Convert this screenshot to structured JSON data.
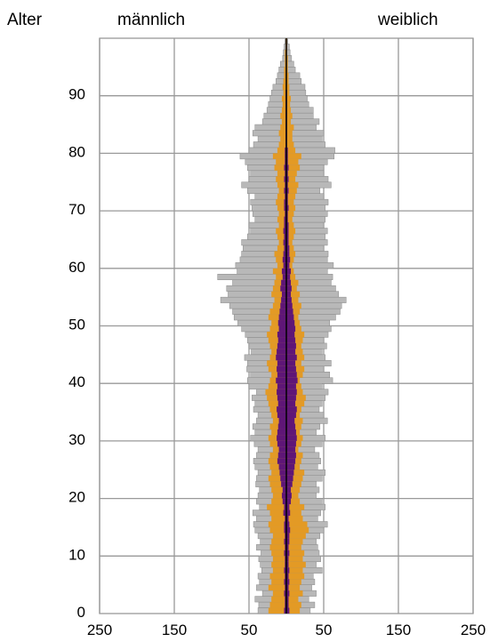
{
  "chart_data": {
    "type": "bar",
    "subtype": "population-pyramid",
    "y_axis_label": "Alter",
    "left_label": "männlich",
    "right_label": "weiblich",
    "x_tick_labels": [
      "250",
      "150",
      "50",
      "50",
      "150",
      "250"
    ],
    "x_tick_values": [
      -250,
      -150,
      -50,
      50,
      150,
      250
    ],
    "xlim": [
      -250,
      250
    ],
    "y_tick_labels": [
      "0",
      "10",
      "20",
      "30",
      "40",
      "50",
      "60",
      "70",
      "80",
      "90"
    ],
    "y_tick_values": [
      0,
      10,
      20,
      30,
      40,
      50,
      60,
      70,
      80,
      90
    ],
    "ylim": [
      0,
      99
    ],
    "grid": true,
    "colors": {
      "outer_layer": "#b8b8b8",
      "middle_layer": "#e39a25",
      "inner_layer": "#5f1677",
      "grid": "#999999",
      "axis": "#000000"
    },
    "ages": [
      0,
      1,
      2,
      3,
      4,
      5,
      6,
      7,
      8,
      9,
      10,
      11,
      12,
      13,
      14,
      15,
      16,
      17,
      18,
      19,
      20,
      21,
      22,
      23,
      24,
      25,
      26,
      27,
      28,
      29,
      30,
      31,
      32,
      33,
      34,
      35,
      36,
      37,
      38,
      39,
      40,
      41,
      42,
      43,
      44,
      45,
      46,
      47,
      48,
      49,
      50,
      51,
      52,
      53,
      54,
      55,
      56,
      57,
      58,
      59,
      60,
      61,
      62,
      63,
      64,
      65,
      66,
      67,
      68,
      69,
      70,
      71,
      72,
      73,
      74,
      75,
      76,
      77,
      78,
      79,
      80,
      81,
      82,
      83,
      84,
      85,
      86,
      87,
      88,
      89,
      90,
      91,
      92,
      93,
      94,
      95,
      96,
      97,
      98,
      99
    ],
    "series": [
      {
        "layer": "outer",
        "male": [
          38,
          37,
          42,
          32,
          40,
          36,
          38,
          33,
          35,
          37,
          34,
          40,
          35,
          38,
          42,
          44,
          40,
          45,
          36,
          40,
          38,
          36,
          41,
          40,
          38,
          42,
          44,
          40,
          38,
          43,
          48,
          42,
          45,
          40,
          38,
          44,
          42,
          46,
          40,
          50,
          52,
          48,
          53,
          52,
          56,
          47,
          50,
          52,
          55,
          60,
          65,
          70,
          72,
          76,
          88,
          78,
          80,
          72,
          92,
          66,
          68,
          62,
          60,
          58,
          60,
          52,
          48,
          50,
          42,
          45,
          46,
          48,
          42,
          52,
          60,
          50,
          48,
          52,
          55,
          62,
          50,
          44,
          38,
          45,
          42,
          32,
          30,
          26,
          24,
          22,
          20,
          18,
          14,
          12,
          10,
          8,
          5,
          4,
          3,
          2
        ],
        "female": [
          32,
          38,
          30,
          40,
          34,
          38,
          36,
          48,
          40,
          46,
          44,
          42,
          40,
          45,
          50,
          55,
          42,
          46,
          52,
          48,
          40,
          44,
          40,
          48,
          52,
          42,
          46,
          44,
          38,
          48,
          52,
          40,
          45,
          55,
          50,
          44,
          48,
          52,
          56,
          48,
          62,
          58,
          50,
          60,
          52,
          48,
          54,
          50,
          56,
          60,
          58,
          66,
          72,
          74,
          80,
          70,
          66,
          60,
          62,
          55,
          63,
          55,
          56,
          50,
          55,
          52,
          55,
          50,
          52,
          55,
          52,
          56,
          50,
          45,
          60,
          56,
          50,
          50,
          55,
          64,
          65,
          52,
          48,
          50,
          40,
          44,
          36,
          36,
          30,
          28,
          26,
          25,
          20,
          18,
          12,
          10,
          7,
          5,
          4,
          2
        ]
      },
      {
        "layer": "middle",
        "male": [
          24,
          22,
          20,
          18,
          24,
          20,
          22,
          18,
          20,
          18,
          20,
          22,
          20,
          18,
          22,
          24,
          20,
          22,
          26,
          20,
          18,
          20,
          22,
          24,
          20,
          22,
          24,
          22,
          18,
          22,
          24,
          20,
          22,
          18,
          20,
          22,
          24,
          26,
          28,
          24,
          22,
          20,
          24,
          26,
          22,
          20,
          22,
          24,
          26,
          22,
          20,
          24,
          22,
          18,
          16,
          20,
          18,
          16,
          14,
          18,
          12,
          14,
          16,
          12,
          10,
          12,
          14,
          10,
          12,
          10,
          12,
          14,
          12,
          10,
          12,
          14,
          12,
          16,
          14,
          18,
          12,
          10,
          8,
          10,
          8,
          6,
          8,
          6,
          5,
          6,
          4,
          5,
          4,
          3,
          3,
          2,
          2,
          2,
          1,
          1
        ],
        "female": [
          18,
          20,
          16,
          22,
          18,
          20,
          24,
          22,
          26,
          22,
          24,
          20,
          22,
          26,
          30,
          28,
          22,
          20,
          24,
          18,
          16,
          18,
          20,
          22,
          24,
          18,
          20,
          22,
          16,
          20,
          22,
          18,
          20,
          22,
          18,
          20,
          24,
          26,
          22,
          20,
          18,
          22,
          24,
          20,
          24,
          22,
          20,
          22,
          24,
          20,
          18,
          16,
          18,
          20,
          16,
          18,
          14,
          16,
          12,
          10,
          8,
          10,
          12,
          10,
          8,
          10,
          12,
          10,
          8,
          10,
          12,
          10,
          12,
          14,
          16,
          12,
          14,
          18,
          16,
          20,
          12,
          10,
          8,
          8,
          10,
          6,
          8,
          6,
          5,
          6,
          4,
          4,
          3,
          3,
          2,
          2,
          2,
          1,
          1,
          1
        ]
      },
      {
        "layer": "inner",
        "male": [
          3,
          2,
          2,
          3,
          2,
          3,
          2,
          3,
          2,
          2,
          3,
          2,
          3,
          2,
          3,
          3,
          2,
          4,
          3,
          5,
          6,
          5,
          7,
          8,
          9,
          10,
          12,
          11,
          10,
          12,
          13,
          12,
          11,
          10,
          12,
          13,
          11,
          12,
          13,
          12,
          14,
          12,
          13,
          12,
          14,
          13,
          12,
          11,
          12,
          10,
          11,
          10,
          9,
          8,
          7,
          6,
          8,
          7,
          5,
          6,
          4,
          5,
          4,
          3,
          4,
          3,
          4,
          3,
          3,
          2,
          3,
          3,
          2,
          3,
          2,
          3,
          2,
          3,
          2,
          2,
          2,
          1,
          1,
          1,
          1,
          1,
          1,
          1,
          1,
          1,
          1,
          0,
          0,
          0,
          0,
          0,
          0,
          0,
          0,
          0
        ],
        "female": [
          4,
          3,
          3,
          4,
          3,
          4,
          3,
          4,
          3,
          3,
          4,
          3,
          4,
          4,
          5,
          4,
          3,
          5,
          4,
          6,
          7,
          6,
          8,
          9,
          10,
          11,
          12,
          13,
          12,
          13,
          14,
          13,
          12,
          11,
          13,
          14,
          12,
          13,
          14,
          13,
          15,
          14,
          13,
          12,
          14,
          12,
          13,
          12,
          11,
          12,
          11,
          10,
          9,
          8,
          7,
          6,
          7,
          6,
          5,
          6,
          4,
          5,
          4,
          4,
          3,
          3,
          3,
          3,
          2,
          2,
          3,
          2,
          2,
          3,
          2,
          3,
          2,
          3,
          2,
          2,
          2,
          1,
          1,
          1,
          1,
          1,
          1,
          1,
          1,
          1,
          1,
          0,
          0,
          0,
          0,
          0,
          0,
          0,
          0,
          0
        ]
      }
    ]
  }
}
